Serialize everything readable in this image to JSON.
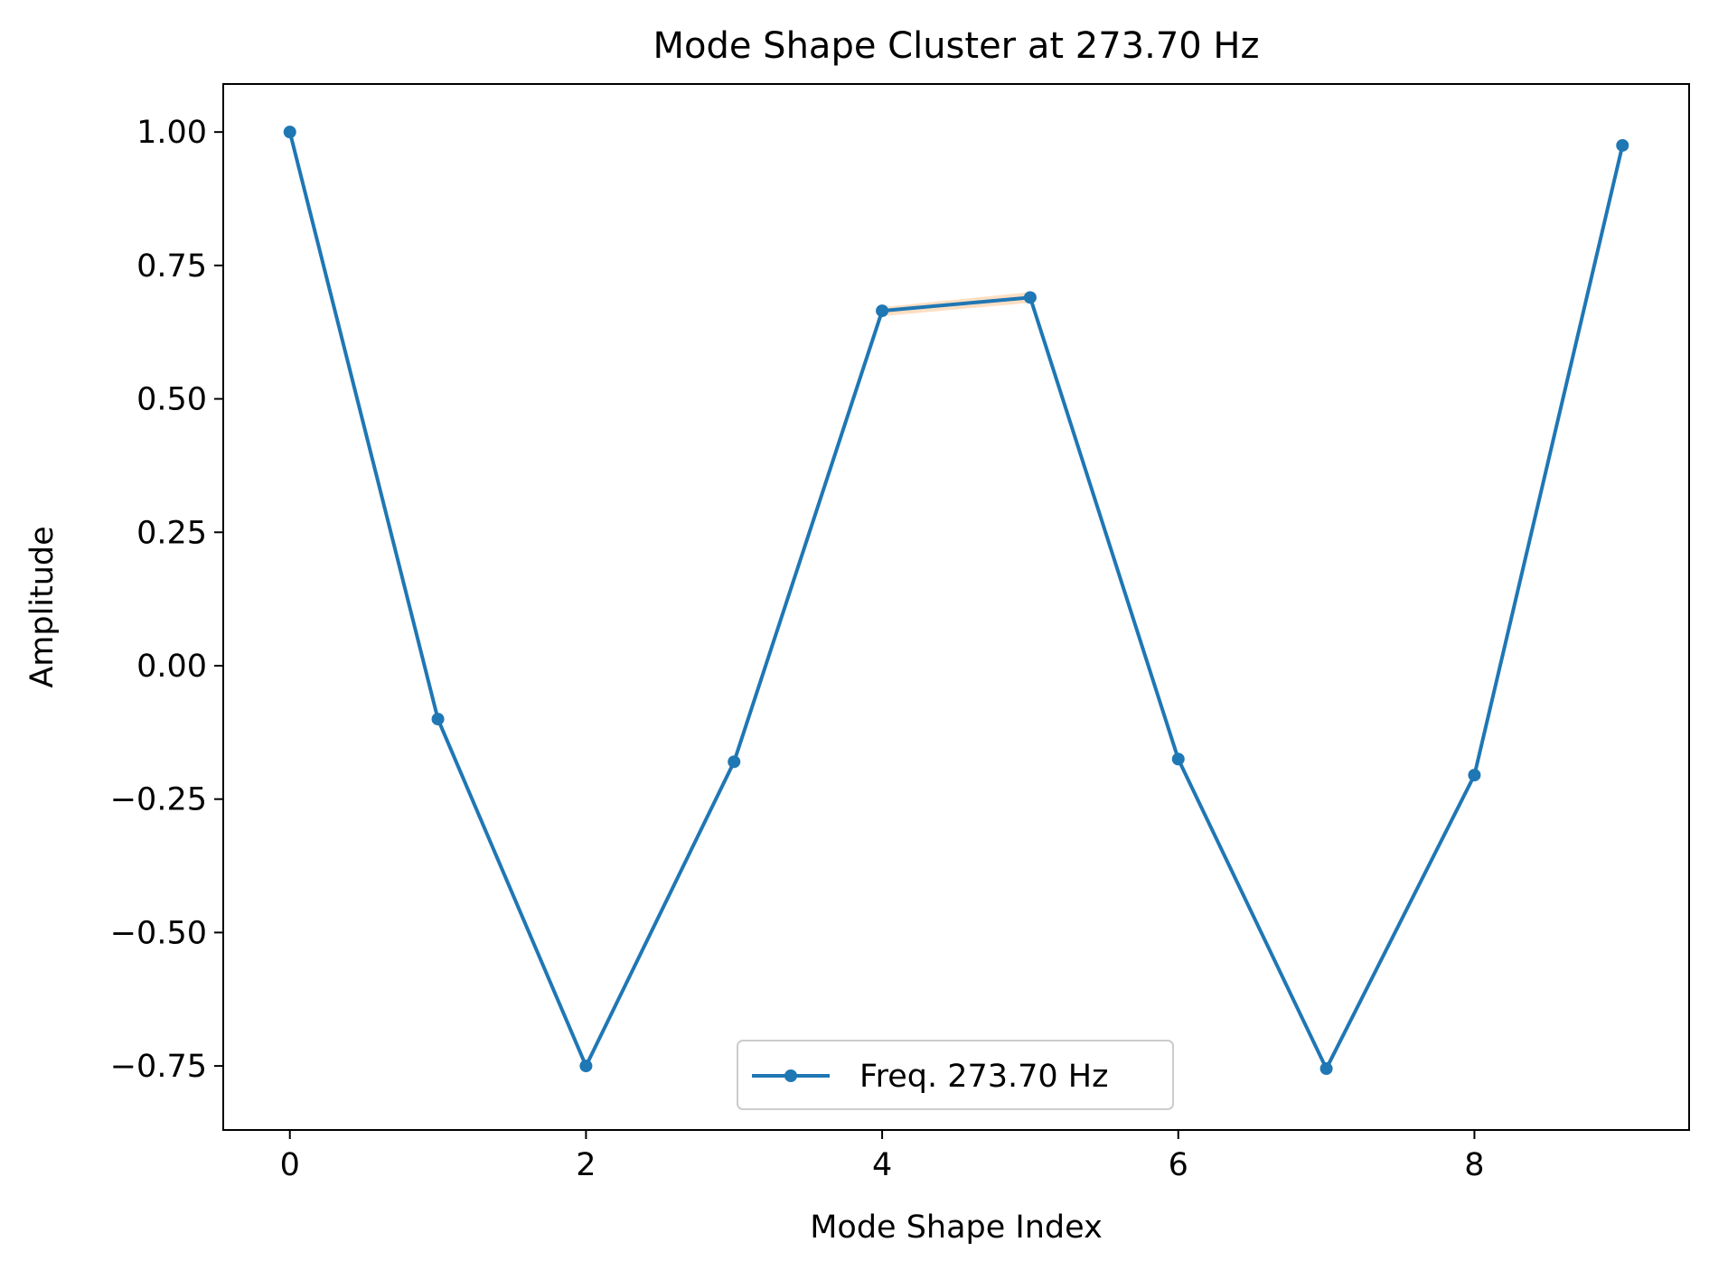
{
  "chart_data": {
    "type": "line",
    "title": "Mode Shape Cluster at 273.70 Hz",
    "xlabel": "Mode Shape Index",
    "ylabel": "Amplitude",
    "xlim": [
      -0.45,
      9.45
    ],
    "ylim": [
      -0.87,
      1.09
    ],
    "grid": false,
    "legend_position": "bottom-center",
    "x_ticks": [
      0,
      2,
      4,
      6,
      8
    ],
    "x_tick_labels": [
      "0",
      "2",
      "4",
      "6",
      "8"
    ],
    "y_ticks": [
      1.0,
      0.75,
      0.5,
      0.25,
      0.0,
      -0.25,
      -0.5,
      -0.75
    ],
    "y_tick_labels": [
      "1.00",
      "0.75",
      "0.50",
      "0.25",
      "0.00",
      "−0.25",
      "−0.50",
      "−0.75"
    ],
    "series": [
      {
        "name": "Freq. 273.70 Hz",
        "color": "#1f77b4",
        "x": [
          0,
          1,
          2,
          3,
          4,
          5,
          6,
          7,
          8,
          9
        ],
        "values": [
          1.0,
          -0.1,
          -0.75,
          -0.18,
          0.665,
          0.69,
          -0.175,
          -0.755,
          -0.205,
          0.975
        ]
      }
    ],
    "band": {
      "color": "#ff7f0e",
      "x": [
        0,
        1,
        2,
        3,
        4,
        5,
        6,
        7,
        8,
        9
      ],
      "lower": [
        1.0,
        -0.1,
        -0.75,
        -0.18,
        0.655,
        0.68,
        -0.175,
        -0.755,
        -0.205,
        0.975
      ],
      "upper": [
        1.0,
        -0.1,
        -0.75,
        -0.18,
        0.672,
        0.7,
        -0.175,
        -0.755,
        -0.205,
        0.975
      ]
    }
  }
}
